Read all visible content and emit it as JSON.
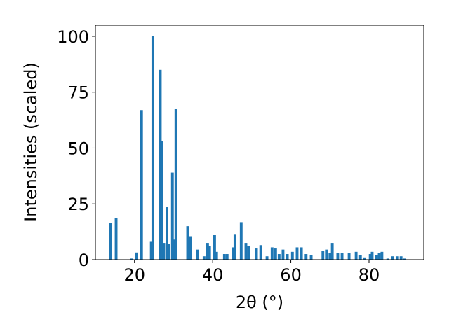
{
  "chart_data": {
    "type": "bar",
    "x_label": "2θ (°)",
    "y_label": "Intensities (scaled)",
    "color": "#1f77b4",
    "xlim": [
      10,
      94
    ],
    "ylim": [
      0,
      105
    ],
    "xticks": [
      20,
      40,
      60,
      80
    ],
    "yticks": [
      0,
      25,
      50,
      75,
      100
    ],
    "x": [
      13.9,
      15.3,
      19.3,
      20.5,
      21.8,
      24.3,
      24.7,
      26.6,
      27.0,
      27.5,
      28.3,
      28.8,
      29.7,
      30.2,
      30.6,
      33.6,
      34.3,
      36.1,
      37.8,
      38.7,
      39.2,
      40.5,
      41.0,
      43.0,
      43.7,
      45.3,
      45.7,
      47.3,
      48.5,
      49.2,
      51.2,
      52.3,
      53.9,
      55.2,
      56.1,
      57.0,
      58.0,
      59.1,
      60.4,
      61.6,
      62.7,
      63.9,
      65.2,
      68.2,
      69.1,
      70.0,
      70.6,
      72.0,
      73.1,
      74.9,
      76.7,
      77.8,
      78.9,
      80.3,
      80.8,
      81.9,
      82.6,
      83.3,
      84.8,
      86.0,
      87.3,
      88.2,
      89.1
    ],
    "values": [
      16.5,
      18.5,
      0.5,
      3.2,
      67,
      8,
      100,
      85,
      53,
      7.5,
      23.5,
      7,
      39,
      9,
      67.5,
      15,
      10.5,
      4.5,
      1.5,
      7.5,
      6,
      11,
      3.5,
      2.5,
      2.5,
      5.5,
      11.5,
      16.8,
      7.5,
      6,
      5,
      6.5,
      1.5,
      5.5,
      5,
      2.5,
      4.5,
      2.5,
      3.5,
      5.5,
      5.5,
      2.5,
      2,
      4,
      4.5,
      3,
      7.5,
      3,
      3,
      3,
      3.5,
      2,
      1,
      2.5,
      3.5,
      2,
      3,
      3.5,
      0.5,
      1.5,
      1.5,
      1.5,
      0.5
    ]
  }
}
